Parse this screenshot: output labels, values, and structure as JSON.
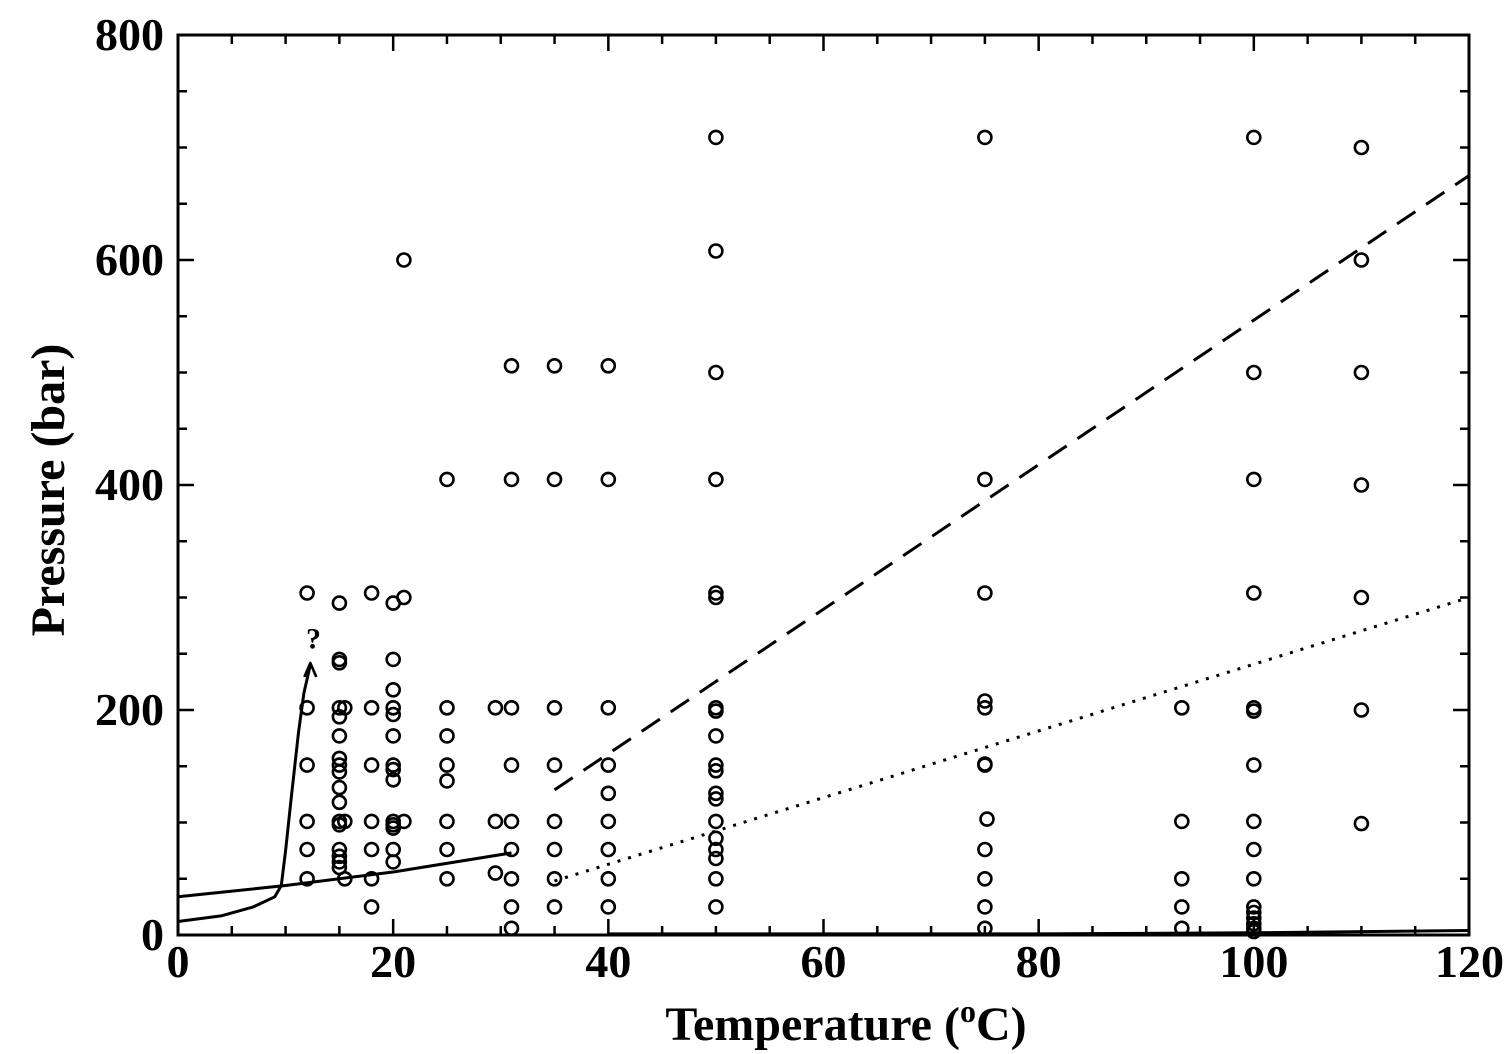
{
  "chart_data": {
    "type": "scatter",
    "xlabel": "Temperature (°C)",
    "xlabel_main": "Temperature (",
    "xlabel_sup": "o",
    "xlabel_end": "C)",
    "ylabel": "Pressure (bar)",
    "xlim": [
      0,
      120
    ],
    "ylim": [
      0,
      800
    ],
    "x_ticks": [
      0,
      20,
      40,
      60,
      80,
      100,
      120
    ],
    "y_ticks": [
      0,
      200,
      400,
      600,
      800
    ],
    "grid": false,
    "marker": "open-circle",
    "points": [
      [
        12,
        304
      ],
      [
        12,
        202
      ],
      [
        12,
        151
      ],
      [
        12,
        101
      ],
      [
        12,
        76
      ],
      [
        12,
        50
      ],
      [
        15,
        295
      ],
      [
        15,
        245
      ],
      [
        15,
        242
      ],
      [
        15,
        202
      ],
      [
        15,
        194
      ],
      [
        15,
        177
      ],
      [
        15,
        157
      ],
      [
        15,
        151
      ],
      [
        15,
        145
      ],
      [
        15,
        131
      ],
      [
        15,
        118
      ],
      [
        15,
        101
      ],
      [
        15,
        98
      ],
      [
        15,
        76
      ],
      [
        15,
        70
      ],
      [
        15,
        65
      ],
      [
        15,
        60
      ],
      [
        15.5,
        202
      ],
      [
        15.5,
        101
      ],
      [
        15.5,
        50
      ],
      [
        18,
        304
      ],
      [
        18,
        202
      ],
      [
        18,
        151
      ],
      [
        18,
        101
      ],
      [
        18,
        76
      ],
      [
        18,
        50
      ],
      [
        18,
        25
      ],
      [
        20,
        295
      ],
      [
        20,
        245
      ],
      [
        20,
        218
      ],
      [
        20,
        202
      ],
      [
        20,
        196
      ],
      [
        20,
        177
      ],
      [
        20,
        151
      ],
      [
        20,
        147
      ],
      [
        20,
        138
      ],
      [
        20,
        101
      ],
      [
        20,
        98
      ],
      [
        20,
        95
      ],
      [
        20,
        76
      ],
      [
        20,
        65
      ],
      [
        21,
        600
      ],
      [
        21,
        300
      ],
      [
        21,
        101
      ],
      [
        25,
        405
      ],
      [
        25,
        202
      ],
      [
        25,
        177
      ],
      [
        25,
        151
      ],
      [
        25,
        137
      ],
      [
        25,
        101
      ],
      [
        25,
        76
      ],
      [
        25,
        50
      ],
      [
        29.5,
        202
      ],
      [
        29.5,
        101
      ],
      [
        29.5,
        55
      ],
      [
        31,
        506
      ],
      [
        31,
        405
      ],
      [
        31,
        202
      ],
      [
        31,
        151
      ],
      [
        31,
        101
      ],
      [
        31,
        76
      ],
      [
        31,
        50
      ],
      [
        31,
        25
      ],
      [
        31,
        6
      ],
      [
        35,
        506
      ],
      [
        35,
        405
      ],
      [
        35,
        202
      ],
      [
        35,
        151
      ],
      [
        35,
        101
      ],
      [
        35,
        76
      ],
      [
        35,
        50
      ],
      [
        35,
        25
      ],
      [
        40,
        506
      ],
      [
        40,
        405
      ],
      [
        40,
        202
      ],
      [
        40,
        151
      ],
      [
        40,
        126
      ],
      [
        40,
        101
      ],
      [
        40,
        76
      ],
      [
        40,
        50
      ],
      [
        40,
        25
      ],
      [
        50,
        709
      ],
      [
        50,
        608
      ],
      [
        50,
        500
      ],
      [
        50,
        405
      ],
      [
        50,
        304
      ],
      [
        50,
        300
      ],
      [
        50,
        202
      ],
      [
        50,
        199
      ],
      [
        50,
        177
      ],
      [
        50,
        151
      ],
      [
        50,
        146
      ],
      [
        50,
        126
      ],
      [
        50,
        121
      ],
      [
        50,
        101
      ],
      [
        50,
        86
      ],
      [
        50,
        76
      ],
      [
        50,
        68
      ],
      [
        50,
        50
      ],
      [
        50,
        25
      ],
      [
        75,
        709
      ],
      [
        75,
        405
      ],
      [
        75,
        304
      ],
      [
        75,
        208
      ],
      [
        75,
        202
      ],
      [
        75,
        152
      ],
      [
        75,
        151
      ],
      [
        75.2,
        103
      ],
      [
        75,
        76
      ],
      [
        75,
        50
      ],
      [
        75,
        25
      ],
      [
        75,
        6
      ],
      [
        93.3,
        202
      ],
      [
        93.3,
        101
      ],
      [
        93.3,
        50
      ],
      [
        93.3,
        25
      ],
      [
        93.3,
        6
      ],
      [
        100,
        709
      ],
      [
        100,
        500
      ],
      [
        100,
        405
      ],
      [
        100,
        304
      ],
      [
        100,
        202
      ],
      [
        100,
        199
      ],
      [
        100,
        151
      ],
      [
        100,
        101
      ],
      [
        100,
        76
      ],
      [
        100,
        50
      ],
      [
        100,
        25
      ],
      [
        100,
        20
      ],
      [
        100,
        15
      ],
      [
        100,
        10
      ],
      [
        100,
        6
      ],
      [
        100,
        3
      ],
      [
        110,
        700
      ],
      [
        110,
        600
      ],
      [
        110,
        500
      ],
      [
        110,
        400
      ],
      [
        110,
        300
      ],
      [
        110,
        200
      ],
      [
        110,
        99
      ]
    ],
    "lines": [
      {
        "style": "solid",
        "points": [
          [
            0,
            34
          ],
          [
            10,
            44
          ],
          [
            20,
            56
          ],
          [
            31,
            73
          ]
        ]
      },
      {
        "style": "solid",
        "points": [
          [
            0,
            12
          ],
          [
            4,
            17
          ],
          [
            7,
            25
          ],
          [
            9,
            34
          ],
          [
            9.6,
            44
          ],
          [
            10,
            75
          ],
          [
            10.5,
            120
          ],
          [
            11.2,
            180
          ],
          [
            11.7,
            215
          ],
          [
            12.3,
            240
          ]
        ]
      },
      {
        "style": "solid",
        "points": [
          [
            40,
            1
          ],
          [
            80,
            1
          ],
          [
            100,
            2
          ],
          [
            120,
            4
          ]
        ]
      },
      {
        "style": "dashed",
        "points": [
          [
            35,
            129
          ],
          [
            120,
            675
          ]
        ]
      },
      {
        "style": "dotted",
        "points": [
          [
            35,
            48
          ],
          [
            120,
            300
          ]
        ]
      }
    ],
    "annotations": [
      {
        "text": "?",
        "x": 12.6,
        "y": 262
      }
    ]
  }
}
